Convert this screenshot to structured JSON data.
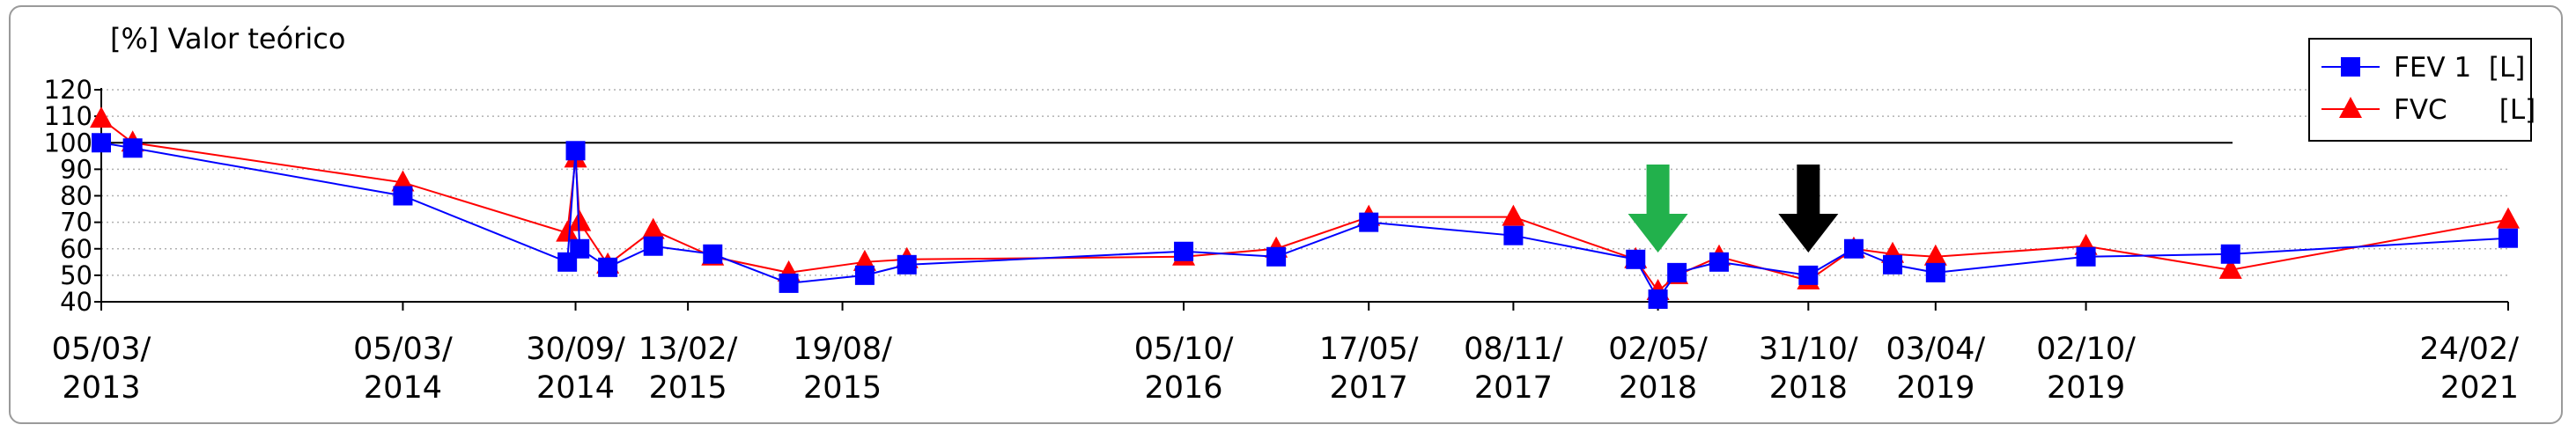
{
  "chart_data": {
    "type": "line",
    "unit_label": "[%] Valor teórico",
    "ylim": [
      40,
      120
    ],
    "y_ticks": [
      40,
      50,
      60,
      70,
      80,
      90,
      100,
      110,
      120
    ],
    "grid": true,
    "reference_line": 100,
    "legend_position": "top-right",
    "x_tick_labels": [
      {
        "date": "2013-03-05",
        "line1": "05/03/",
        "line2": "2013"
      },
      {
        "date": "2014-03-05",
        "line1": "05/03/",
        "line2": "2014"
      },
      {
        "date": "2014-09-30",
        "line1": "30/09/",
        "line2": "2014"
      },
      {
        "date": "2015-02-13",
        "line1": "13/02/",
        "line2": "2015"
      },
      {
        "date": "2015-08-19",
        "line1": "19/08/",
        "line2": "2015"
      },
      {
        "date": "2016-10-05",
        "line1": "05/10/",
        "line2": "2016"
      },
      {
        "date": "2017-05-17",
        "line1": "17/05/",
        "line2": "2017"
      },
      {
        "date": "2017-11-08",
        "line1": "08/11/",
        "line2": "2017"
      },
      {
        "date": "2018-05-02",
        "line1": "02/05/",
        "line2": "2018"
      },
      {
        "date": "2018-10-31",
        "line1": "31/10/",
        "line2": "2018"
      },
      {
        "date": "2019-04-03",
        "line1": "03/04/",
        "line2": "2019"
      },
      {
        "date": "2019-10-02",
        "line1": "02/10/",
        "line2": "2019"
      },
      {
        "date": "2021-02-24",
        "line1": "24/02/",
        "line2": "2021"
      }
    ],
    "series": [
      {
        "name": "FEV 1",
        "legend_text": "FEV 1  [L]",
        "color": "#0000ff",
        "marker": "square",
        "points": [
          [
            "2013-03-05",
            100
          ],
          [
            "2013-04-12",
            98
          ],
          [
            "2014-03-05",
            80
          ],
          [
            "2014-09-20",
            55
          ],
          [
            "2014-09-30",
            97
          ],
          [
            "2014-10-05",
            60
          ],
          [
            "2014-11-08",
            53
          ],
          [
            "2015-01-02",
            61
          ],
          [
            "2015-03-15",
            58
          ],
          [
            "2015-06-15",
            47
          ],
          [
            "2015-09-15",
            50
          ],
          [
            "2015-11-05",
            54
          ],
          [
            "2016-10-05",
            59
          ],
          [
            "2017-01-25",
            57
          ],
          [
            "2017-05-17",
            70
          ],
          [
            "2017-11-08",
            65
          ],
          [
            "2018-04-05",
            56
          ],
          [
            "2018-05-02",
            41
          ],
          [
            "2018-05-25",
            51
          ],
          [
            "2018-07-15",
            55
          ],
          [
            "2018-10-31",
            50
          ],
          [
            "2018-12-25",
            60
          ],
          [
            "2019-02-10",
            54
          ],
          [
            "2019-04-03",
            51
          ],
          [
            "2019-10-02",
            57
          ],
          [
            "2020-03-25",
            58
          ],
          [
            "2021-02-24",
            64
          ]
        ]
      },
      {
        "name": "FVC",
        "legend_text": "FVC      [L]",
        "color": "#ff0000",
        "marker": "triangle",
        "points": [
          [
            "2013-03-05",
            109
          ],
          [
            "2013-04-12",
            100
          ],
          [
            "2014-03-05",
            85
          ],
          [
            "2014-09-20",
            66
          ],
          [
            "2014-09-30",
            94
          ],
          [
            "2014-10-05",
            70
          ],
          [
            "2014-11-08",
            54
          ],
          [
            "2015-01-02",
            67
          ],
          [
            "2015-03-15",
            57
          ],
          [
            "2015-06-15",
            51
          ],
          [
            "2015-09-15",
            55
          ],
          [
            "2015-11-05",
            56
          ],
          [
            "2016-10-05",
            57
          ],
          [
            "2017-01-25",
            60
          ],
          [
            "2017-05-17",
            72
          ],
          [
            "2017-11-08",
            72
          ],
          [
            "2018-04-05",
            56
          ],
          [
            "2018-05-02",
            44
          ],
          [
            "2018-05-25",
            50
          ],
          [
            "2018-07-15",
            57
          ],
          [
            "2018-10-31",
            48
          ],
          [
            "2018-12-25",
            60
          ],
          [
            "2019-02-10",
            58
          ],
          [
            "2019-04-03",
            57
          ],
          [
            "2019-10-02",
            61
          ],
          [
            "2020-03-25",
            52
          ],
          [
            "2021-02-24",
            71
          ]
        ]
      }
    ],
    "annotations": [
      {
        "type": "arrow-down",
        "color": "#22b14c",
        "date": "2018-05-02"
      },
      {
        "type": "arrow-down",
        "color": "#000000",
        "date": "2018-10-31"
      }
    ]
  }
}
